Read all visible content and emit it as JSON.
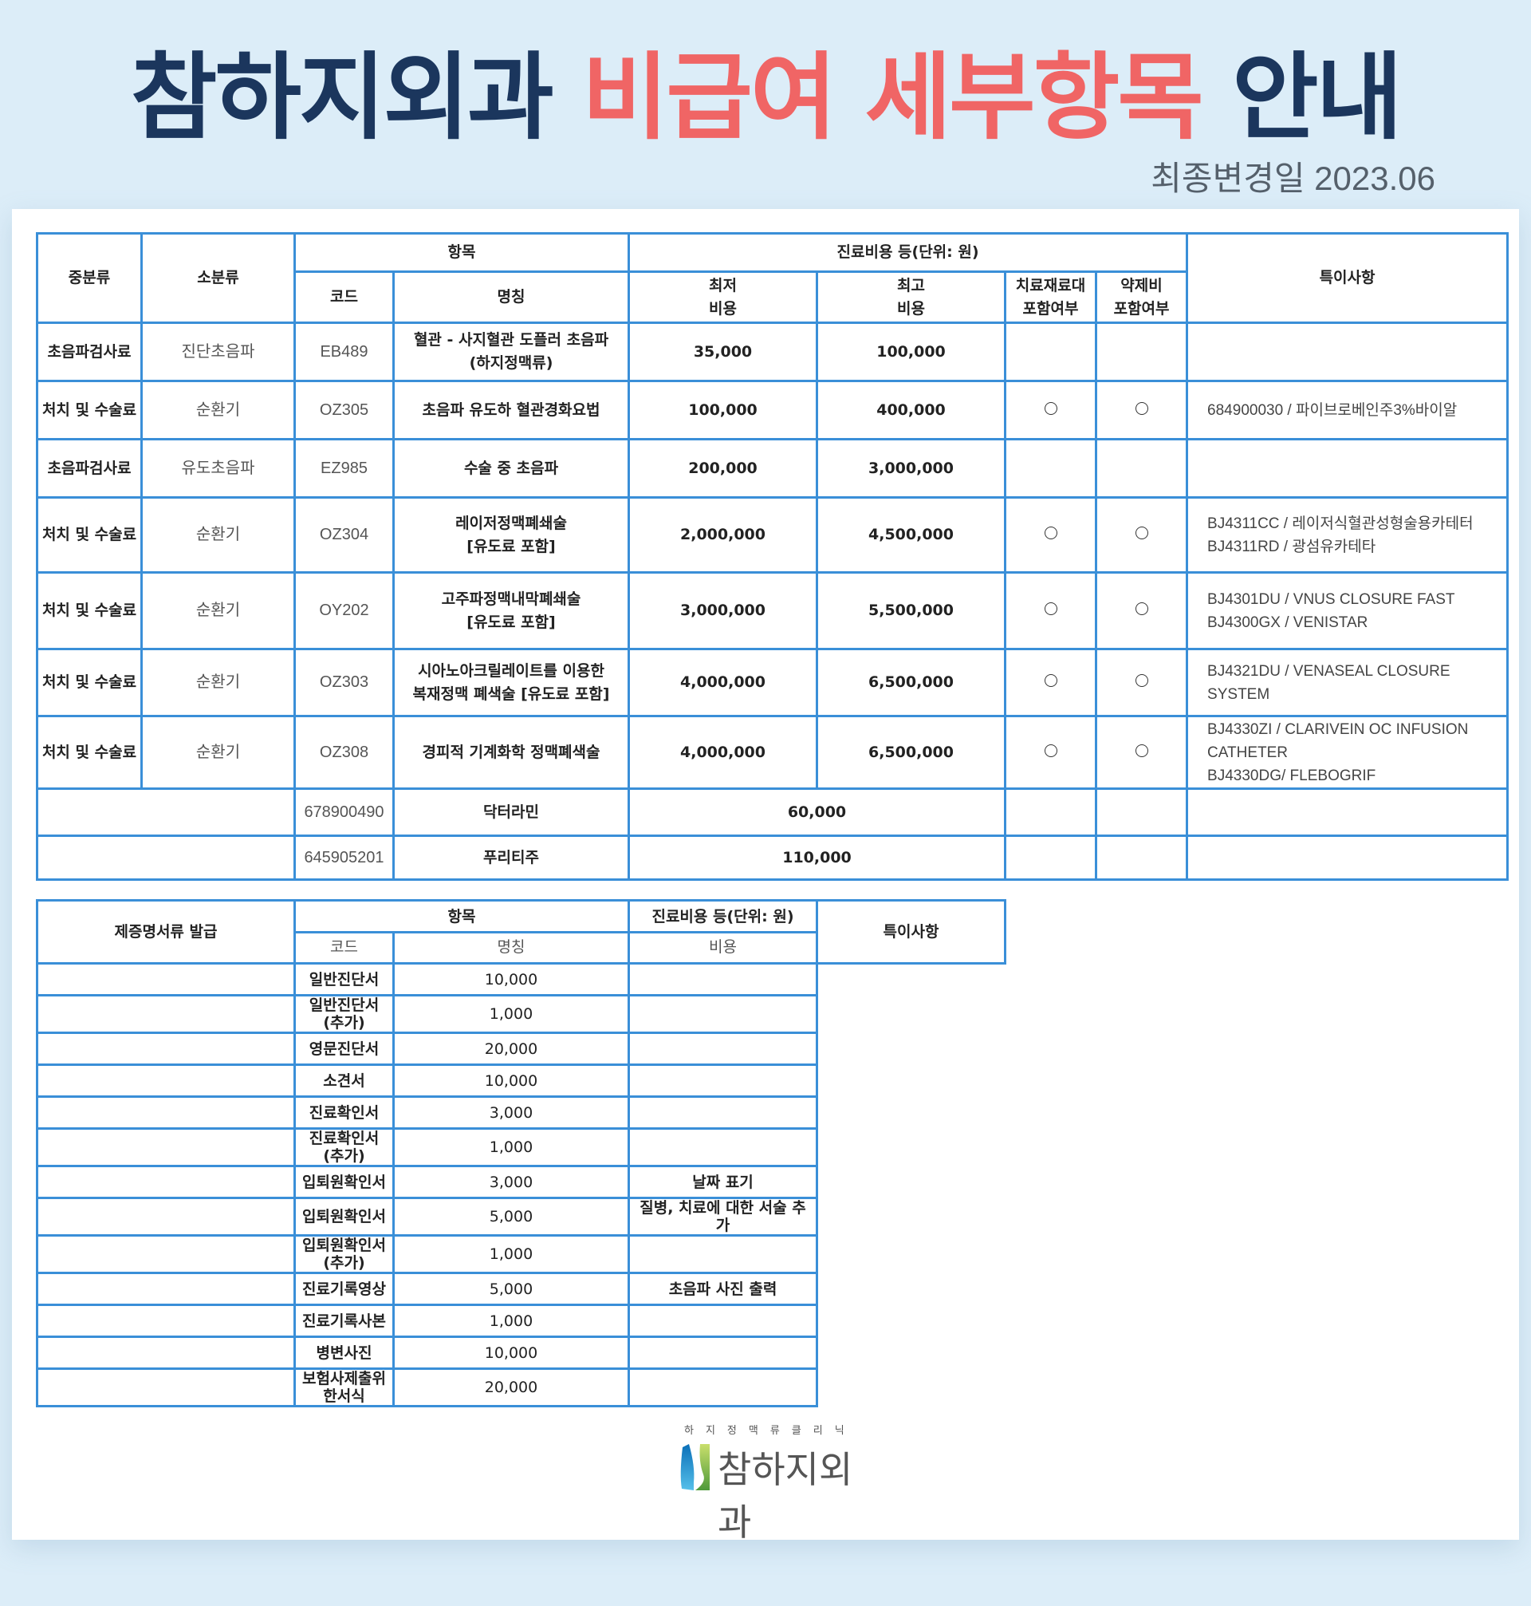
{
  "header": {
    "title_part1": "참하지외과",
    "title_part2": "비급여 세부항목",
    "title_part3": "안내",
    "updated": "최종변경일 2023.06",
    "colors": {
      "navy": "#1b365d",
      "red": "#f06565",
      "border": "#3a8fd8"
    }
  },
  "table1": {
    "headers": {
      "mid_category": "중분류",
      "sub_category": "소분류",
      "item": "항목",
      "code": "코드",
      "name": "명칭",
      "cost_group": "진료비용 등(단위: 원)",
      "min_cost_1": "최저",
      "min_cost_2": "비용",
      "max_cost_1": "최고",
      "max_cost_2": "비용",
      "material_1": "치료재료대",
      "material_2": "포함여부",
      "drug_1": "약제비",
      "drug_2": "포함여부",
      "notes": "특이사항"
    },
    "rows": [
      {
        "mid": "초음파검사료",
        "sub": "진단초음파",
        "code": "EB489",
        "name1": "혈관 - 사지혈관 도플러 초음파",
        "name2": "(하지정맥류)",
        "min": "35,000",
        "max": "100,000",
        "material": "",
        "drug": "",
        "note1": "",
        "note2": "",
        "note3": ""
      },
      {
        "mid": "처치 및 수술료",
        "sub": "순환기",
        "code": "OZ305",
        "name1": "초음파 유도하 혈관경화요법",
        "name2": "",
        "min": "100,000",
        "max": "400,000",
        "material": "○",
        "drug": "○",
        "note1": "684900030 / 파이브로베인주3%바이알",
        "note2": "",
        "note3": ""
      },
      {
        "mid": "초음파검사료",
        "sub": "유도초음파",
        "code": "EZ985",
        "name1": "수술 중 초음파",
        "name2": "",
        "min": "200,000",
        "max": "3,000,000",
        "material": "",
        "drug": "",
        "note1": "",
        "note2": "",
        "note3": ""
      },
      {
        "mid": "처치 및 수술료",
        "sub": "순환기",
        "code": "OZ304",
        "name1": "레이저정맥폐쇄술",
        "name2": "[유도료 포함]",
        "min": "2,000,000",
        "max": "4,500,000",
        "material": "○",
        "drug": "○",
        "note1": "BJ4311CC / 레이저식혈관성형술용카테터",
        "note2": "BJ4311RD / 광섬유카테타",
        "note3": ""
      },
      {
        "mid": "처치 및 수술료",
        "sub": "순환기",
        "code": "OY202",
        "name1": "고주파정맥내막폐쇄술",
        "name2": "[유도료 포함]",
        "min": "3,000,000",
        "max": "5,500,000",
        "material": "○",
        "drug": "○",
        "note1": "BJ4301DU / VNUS CLOSURE FAST",
        "note2": "BJ4300GX / VENISTAR",
        "note3": ""
      },
      {
        "mid": "처치 및 수술료",
        "sub": "순환기",
        "code": "OZ303",
        "name1": "시아노아크릴레이트를 이용한",
        "name2": "복재정맥 폐색술 [유도료 포함]",
        "min": "4,000,000",
        "max": "6,500,000",
        "material": "○",
        "drug": "○",
        "note1": "BJ4321DU / VENASEAL CLOSURE",
        "note2": "SYSTEM",
        "note3": ""
      },
      {
        "mid": "처치 및 수술료",
        "sub": "순환기",
        "code": "OZ308",
        "name1": "경피적 기계화학 정맥폐색술",
        "name2": "",
        "min": "4,000,000",
        "max": "6,500,000",
        "material": "○",
        "drug": "○",
        "note1": "BJ4330ZI / CLARIVEIN OC INFUSION",
        "note2": "CATHETER",
        "note3": "BJ4330DG/ FLEBOGRIF"
      }
    ],
    "drug_rows": [
      {
        "code": "678900490",
        "name": "닥터라민",
        "cost": "60,000"
      },
      {
        "code": "645905201",
        "name": "푸리티주",
        "cost": "110,000"
      }
    ]
  },
  "table2": {
    "category": "제증명서류 발급",
    "headers": {
      "item": "항목",
      "cost_group": "진료비용 등(단위: 원)",
      "notes": "특이사항",
      "code": "코드",
      "name": "명칭",
      "cost": "비용"
    },
    "rows": [
      {
        "code": "",
        "name": "일반진단서",
        "cost": "10,000",
        "note": ""
      },
      {
        "code": "",
        "name": "일반진단서(추가)",
        "cost": "1,000",
        "note": ""
      },
      {
        "code": "",
        "name": "영문진단서",
        "cost": "20,000",
        "note": ""
      },
      {
        "code": "",
        "name": "소견서",
        "cost": "10,000",
        "note": ""
      },
      {
        "code": "",
        "name": "진료확인서",
        "cost": "3,000",
        "note": ""
      },
      {
        "code": "",
        "name": "진료확인서(추가)",
        "cost": "1,000",
        "note": ""
      },
      {
        "code": "",
        "name": "입퇴원확인서",
        "cost": "3,000",
        "note": "날짜 표기"
      },
      {
        "code": "",
        "name": "입퇴원확인서",
        "cost": "5,000",
        "note": "질병, 치료에 대한 서술 추가"
      },
      {
        "code": "",
        "name": "입퇴원확인서(추가)",
        "cost": "1,000",
        "note": ""
      },
      {
        "code": "",
        "name": "진료기록영상",
        "cost": "5,000",
        "note": "초음파 사진 출력"
      },
      {
        "code": "",
        "name": "진료기록사본",
        "cost": "1,000",
        "note": ""
      },
      {
        "code": "",
        "name": "병변사진",
        "cost": "10,000",
        "note": ""
      },
      {
        "code": "",
        "name": "보험사제출위한서식",
        "cost": "20,000",
        "note": ""
      }
    ]
  },
  "footer": {
    "logo_sub": "하지정맥류클리닉",
    "logo_name": "참하지외과"
  }
}
